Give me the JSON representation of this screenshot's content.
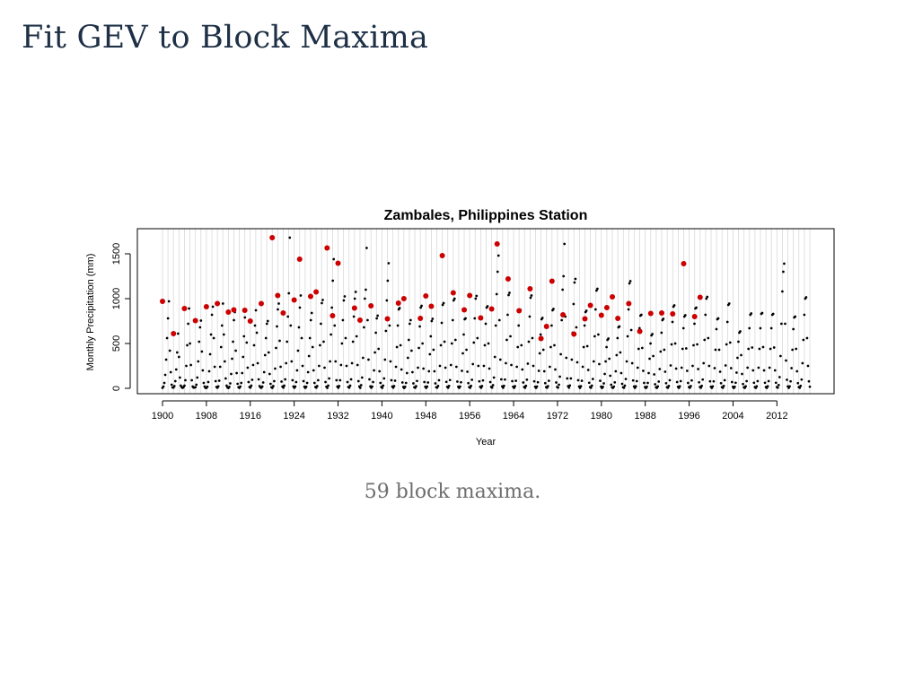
{
  "slide": {
    "title": "Fit GEV to Block Maxima",
    "caption": "59 block maxima."
  },
  "chart_data": {
    "type": "scatter",
    "title": "Zambales, Philippines Station",
    "xlabel": "Year",
    "ylabel": "Monthly Precipitation (mm)",
    "xlim": [
      1900,
      2018
    ],
    "ylim": [
      0,
      1700
    ],
    "x_ticks": [
      1900,
      1908,
      1916,
      1924,
      1932,
      1940,
      1948,
      1956,
      1964,
      1972,
      1980,
      1988,
      1996,
      2004,
      2012
    ],
    "y_ticks": [
      0,
      500,
      1000,
      1500
    ],
    "grid": "vertical lines at each year",
    "colors": {
      "monthly": "#000000",
      "maxima": "#cc0000",
      "grid": "#d9d9d9"
    },
    "block_maxima": {
      "x": [
        1900,
        1902,
        1904,
        1906,
        1908,
        1910,
        1912,
        1913,
        1915,
        1916,
        1918,
        1920,
        1921,
        1922,
        1924,
        1925,
        1927,
        1928,
        1930,
        1931,
        1932,
        1935,
        1936,
        1938,
        1941,
        1943,
        1944,
        1947,
        1948,
        1949,
        1951,
        1953,
        1955,
        1956,
        1958,
        1960,
        1961,
        1963,
        1965,
        1967,
        1969,
        1970,
        1971,
        1973,
        1975,
        1977,
        1978,
        1980,
        1981,
        1982,
        1983,
        1985,
        1987,
        1989,
        1991,
        1993,
        1995,
        1997,
        1998
      ],
      "y": [
        970,
        610,
        890,
        755,
        910,
        945,
        850,
        875,
        870,
        750,
        945,
        1680,
        1035,
        840,
        985,
        1440,
        1025,
        1075,
        1565,
        810,
        1395,
        895,
        760,
        920,
        775,
        950,
        1000,
        780,
        1030,
        915,
        1480,
        1065,
        875,
        1035,
        785,
        885,
        1610,
        1220,
        865,
        1110,
        555,
        690,
        1195,
        820,
        605,
        775,
        925,
        815,
        900,
        1020,
        780,
        945,
        635,
        835,
        840,
        830,
        1390,
        800,
        1015
      ]
    },
    "monthly": {
      "note": "approximate monthly precipitation values, 1900-2018",
      "y": [
        5,
        20,
        60,
        150,
        320,
        560,
        780,
        970,
        420,
        180,
        40,
        10,
        8,
        25,
        80,
        210,
        400,
        610,
        350,
        120,
        30,
        12,
        5,
        15,
        30,
        90,
        250,
        480,
        720,
        890,
        500,
        260,
        90,
        20,
        8,
        10,
        12,
        40,
        120,
        300,
        520,
        680,
        755,
        410,
        200,
        60,
        20,
        5,
        5,
        18,
        70,
        190,
        380,
        600,
        820,
        910,
        560,
        240,
        80,
        15,
        6,
        22,
        85,
        240,
        460,
        700,
        945,
        600,
        300,
        110,
        30,
        10,
        4,
        16,
        55,
        160,
        330,
        520,
        760,
        850,
        420,
        170,
        50,
        12,
        5,
        20,
        60,
        170,
        350,
        580,
        790,
        875,
        510,
        230,
        70,
        15,
        8,
        30,
        95,
        260,
        480,
        700,
        870,
        620,
        280,
        100,
        25,
        10,
        6,
        20,
        65,
        180,
        370,
        560,
        720,
        750,
        400,
        160,
        50,
        12,
        5,
        25,
        80,
        220,
        450,
        690,
        880,
        945,
        530,
        240,
        75,
        20,
        8,
        30,
        100,
        280,
        520,
        800,
        1060,
        1680,
        700,
        300,
        90,
        20,
        6,
        20,
        70,
        200,
        420,
        680,
        900,
        1035,
        560,
        250,
        80,
        18,
        5,
        18,
        60,
        180,
        360,
        560,
        760,
        840,
        460,
        200,
        60,
        15,
        7,
        25,
        90,
        250,
        480,
        720,
        950,
        985,
        520,
        230,
        70,
        18,
        5,
        30,
        110,
        300,
        600,
        900,
        1200,
        1440,
        700,
        300,
        90,
        20,
        6,
        25,
        90,
        260,
        500,
        760,
        980,
        1025,
        560,
        250,
        70,
        15,
        8,
        30,
        100,
        280,
        520,
        800,
        1000,
        1075,
        580,
        260,
        80,
        20,
        5,
        35,
        120,
        340,
        680,
        1000,
        1100,
        1565,
        760,
        320,
        100,
        22,
        6,
        20,
        70,
        200,
        400,
        620,
        780,
        810,
        440,
        190,
        60,
        15,
        5,
        30,
        110,
        320,
        640,
        980,
        1200,
        1395,
        700,
        300,
        90,
        20,
        7,
        25,
        85,
        240,
        460,
        700,
        880,
        895,
        480,
        210,
        65,
        15,
        4,
        18,
        60,
        170,
        340,
        540,
        720,
        760,
        420,
        180,
        55,
        12,
        6,
        24,
        82,
        230,
        450,
        690,
        900,
        920,
        500,
        220,
        70,
        18,
        5,
        20,
        65,
        190,
        380,
        580,
        750,
        775,
        430,
        190,
        55,
        12,
        7,
        26,
        90,
        250,
        480,
        730,
        930,
        950,
        520,
        230,
        72,
        16,
        6,
        27,
        92,
        260,
        500,
        760,
        980,
        1000,
        540,
        240,
        75,
        18,
        5,
        20,
        68,
        195,
        390,
        600,
        770,
        780,
        430,
        185,
        58,
        14,
        6,
        28,
        95,
        270,
        510,
        780,
        1000,
        1030,
        560,
        250,
        78,
        18,
        6,
        25,
        88,
        250,
        480,
        720,
        900,
        915,
        500,
        220,
        70,
        16,
        8,
        35,
        120,
        350,
        700,
        1050,
        1300,
        1480,
        760,
        320,
        100,
        22,
        6,
        28,
        98,
        280,
        540,
        820,
        1040,
        1065,
        580,
        260,
        80,
        18,
        5,
        24,
        84,
        240,
        460,
        700,
        860,
        875,
        480,
        210,
        65,
        15,
        6,
        28,
        96,
        275,
        520,
        800,
        1010,
        1035,
        560,
        250,
        78,
        18,
        5,
        20,
        68,
        195,
        390,
        600,
        770,
        785,
        430,
        190,
        58,
        14,
        6,
        24,
        84,
        240,
        460,
        700,
        870,
        885,
        480,
        210,
        65,
        15,
        8,
        40,
        130,
        380,
        760,
        1100,
        1250,
        1610,
        800,
        340,
        110,
        24,
        7,
        32,
        110,
        320,
        620,
        940,
        1180,
        1220,
        680,
        290,
        90,
        20,
        5,
        24,
        84,
        240,
        460,
        700,
        850,
        865,
        470,
        205,
        62,
        14,
        6,
        30,
        104,
        300,
        580,
        880,
        1090,
        1110,
        600,
        270,
        84,
        19,
        4,
        16,
        55,
        160,
        300,
        460,
        540,
        555,
        330,
        140,
        40,
        10,
        5,
        19,
        66,
        190,
        370,
        560,
        680,
        690,
        400,
        170,
        50,
        12,
        6,
        30,
        104,
        300,
        580,
        880,
        1170,
        1195,
        650,
        280,
        88,
        20,
        5,
        23,
        80,
        230,
        440,
        670,
        810,
        820,
        450,
        195,
        60,
        14,
        4,
        18,
        60,
        170,
        330,
        500,
        590,
        605,
        360,
        155,
        45,
        11,
        5,
        21,
        75,
        215,
        410,
        620,
        760,
        775,
        430,
        185,
        57,
        13,
        6,
        26,
        90,
        255,
        490,
        740,
        910,
        925,
        500,
        220,
        70,
        16,
        5,
        23,
        80,
        230,
        440,
        670,
        800,
        815,
        445,
        195,
        60,
        14,
        6,
        25,
        88,
        250,
        480,
        720,
        890,
        900,
        490,
        215,
        67,
        15,
        6,
        28,
        98,
        280,
        540,
        820,
        1000,
        1020,
        560,
        250,
        78,
        18,
        5,
        22,
        78,
        225,
        430,
        660,
        770,
        780,
        430,
        185,
        57,
        13,
        6,
        26,
        90,
        255,
        490,
        740,
        930,
        945,
        510,
        225,
        70,
        16,
        4,
        18,
        62,
        175,
        340,
        520,
        620,
        635,
        370,
        160,
        48,
        11,
        5,
        23,
        80,
        230,
        440,
        670,
        820,
        835,
        455,
        200,
        62,
        14,
        5,
        23,
        80,
        230,
        440,
        670,
        830,
        840,
        460,
        200,
        62,
        14,
        5,
        23,
        80,
        230,
        440,
        670,
        820,
        830,
        455,
        200,
        62,
        14,
        7,
        36,
        125,
        360,
        720,
        1080,
        1300,
        1390,
        720,
        310,
        95,
        22,
        5,
        22,
        78,
        225,
        430,
        660,
        790,
        800,
        440,
        190,
        58,
        14,
        6,
        28,
        98,
        280,
        540,
        820,
        1000,
        1015,
        560,
        250,
        78,
        18
      ]
    }
  }
}
